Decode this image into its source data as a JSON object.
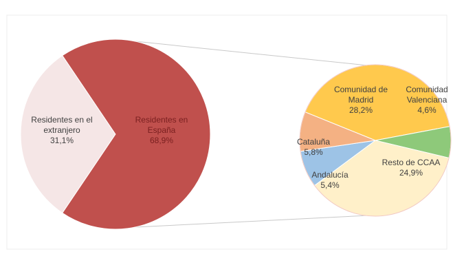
{
  "chart_data": {
    "type": "pie",
    "subtype": "pie-of-pie",
    "main_pie": {
      "slices": [
        {
          "label_lines": [
            "Residentes en el",
            "extranjero"
          ],
          "value_text": "31,1%",
          "value": 31.1,
          "color": "#f5e6e6"
        },
        {
          "label_lines": [
            "Residentes en",
            "España"
          ],
          "value_text": "68,9%",
          "value": 68.9,
          "color": "#c0504d"
        }
      ]
    },
    "secondary_pie": {
      "breakdown_of": "Residentes en España",
      "slices": [
        {
          "label_lines": [
            "Comunidad de",
            "Madrid"
          ],
          "value_text": "28,2%",
          "value": 28.2,
          "color": "#ffc94d"
        },
        {
          "label_lines": [
            "Comunidad",
            "Valenciana"
          ],
          "value_text": "4,6%",
          "value": 4.6,
          "color": "#8ec97a"
        },
        {
          "label_lines": [
            "Resto de CCAA"
          ],
          "value_text": "24,9%",
          "value": 24.9,
          "color": "#fff0c9"
        },
        {
          "label_lines": [
            "Andalucía"
          ],
          "value_text": "5,4%",
          "value": 5.4,
          "color": "#9dc3e6"
        },
        {
          "label_lines": [
            "Cataluña"
          ],
          "value_text": "5,8%",
          "value": 5.8,
          "color": "#f4b183"
        }
      ]
    }
  }
}
